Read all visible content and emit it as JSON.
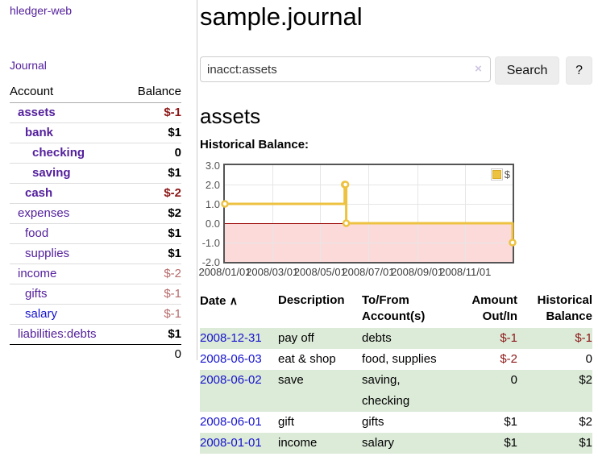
{
  "sidebar": {
    "app_title": "hledger-web",
    "nav": {
      "journal": "Journal"
    },
    "accounts_table": {
      "headers": {
        "account": "Account",
        "balance": "Balance"
      },
      "rows": [
        {
          "name": "assets",
          "balance": "$-1",
          "depth": 1,
          "bold": true,
          "neg": "strong"
        },
        {
          "name": "bank",
          "balance": "$1",
          "depth": 2,
          "bold": true,
          "neg": "none"
        },
        {
          "name": "checking",
          "balance": "0",
          "depth": 3,
          "bold": true,
          "neg": "none"
        },
        {
          "name": "saving",
          "balance": "$1",
          "depth": 3,
          "bold": true,
          "neg": "none"
        },
        {
          "name": "cash",
          "balance": "$-2",
          "depth": 2,
          "bold": true,
          "neg": "strong"
        },
        {
          "name": "expenses",
          "balance": "$2",
          "depth": 1,
          "bold": false,
          "neg": "none"
        },
        {
          "name": "food",
          "balance": "$1",
          "depth": 2,
          "bold": false,
          "neg": "none"
        },
        {
          "name": "supplies",
          "balance": "$1",
          "depth": 2,
          "bold": false,
          "neg": "none"
        },
        {
          "name": "income",
          "balance": "$-2",
          "depth": 1,
          "bold": false,
          "neg": "muted"
        },
        {
          "name": "gifts",
          "balance": "$-1",
          "depth": 2,
          "bold": false,
          "neg": "muted"
        },
        {
          "name": "salary",
          "balance": "$-1",
          "depth": 2,
          "bold": false,
          "neg": "muted",
          "blue": true
        },
        {
          "name": "liabilities:debts",
          "balance": "$1",
          "depth": 1,
          "bold": false,
          "neg": "none"
        }
      ],
      "total": "0"
    }
  },
  "main": {
    "title": "sample.journal",
    "search": {
      "value": "inacct:assets",
      "clear_label": "×",
      "button": "Search",
      "help_button": "?"
    },
    "account_heading": "assets",
    "chart_heading": "Historical Balance:",
    "register": {
      "headers": {
        "date": "Date",
        "sort_icon": "∧",
        "description": "Description",
        "accounts": "To/From Account(s)",
        "amount": "Amount Out/In",
        "balance": "Historical Balance"
      },
      "rows": [
        {
          "date": "2008-12-31",
          "description": "pay off",
          "accounts": "debts",
          "amount": "$-1",
          "amount_negative": true,
          "balance": "$-1",
          "balance_negative": true
        },
        {
          "date": "2008-06-03",
          "description": "eat & shop",
          "accounts": "food, supplies",
          "amount": "$-2",
          "amount_negative": true,
          "balance": "0",
          "balance_negative": false
        },
        {
          "date": "2008-06-02",
          "description": "save",
          "accounts": "saving,\nchecking",
          "amount": "0",
          "amount_negative": false,
          "balance": "$2",
          "balance_negative": false
        },
        {
          "date": "2008-06-01",
          "description": "gift",
          "accounts": "gifts",
          "amount": "$1",
          "amount_negative": false,
          "balance": "$2",
          "balance_negative": false
        },
        {
          "date": "2008-01-01",
          "description": "income",
          "accounts": "salary",
          "amount": "$1",
          "amount_negative": false,
          "balance": "$1",
          "balance_negative": false
        }
      ]
    }
  },
  "chart_data": {
    "type": "line",
    "style": "step-after",
    "title": "Historical Balance",
    "x_range": [
      "2008-01-01",
      "2008-12-31"
    ],
    "ylim": [
      -2,
      3
    ],
    "grid": true,
    "legend": {
      "position": "top-right",
      "label": "$"
    },
    "yticks": [
      {
        "value": 3,
        "label": "3.0"
      },
      {
        "value": 2,
        "label": "2.0"
      },
      {
        "value": 1,
        "label": "1.0"
      },
      {
        "value": 0,
        "label": "0.0"
      },
      {
        "value": -1,
        "label": "-1.0"
      },
      {
        "value": -2,
        "label": "-2.0"
      }
    ],
    "xticks": [
      {
        "date": "2008-01-01",
        "label": "2008/01/01"
      },
      {
        "date": "2008-03-01",
        "label": "2008/03/01"
      },
      {
        "date": "2008-05-01",
        "label": "2008/05/01"
      },
      {
        "date": "2008-07-01",
        "label": "2008/07/01"
      },
      {
        "date": "2008-09-01",
        "label": "2008/09/01"
      },
      {
        "date": "2008-11-01",
        "label": "2008/11/01"
      }
    ],
    "series": [
      {
        "name": "$",
        "color": "#edc240",
        "points": [
          [
            "2008-01-01",
            1
          ],
          [
            "2008-06-01",
            2
          ],
          [
            "2008-06-02",
            2
          ],
          [
            "2008-06-03",
            0
          ],
          [
            "2008-12-31",
            -1
          ]
        ]
      }
    ],
    "zero_line_color": "#990000",
    "negative_region_color": "#fcdada"
  },
  "colors": {
    "link_purple": "#54209c",
    "link_blue": "#1513cd",
    "negative_strong": "#8c1616",
    "negative_muted": "#b66a6a",
    "row_stripe_green": "#dcead8",
    "series_yellow": "#edc240",
    "chart_border": "#545454",
    "gridline": "#e6e6e6"
  }
}
